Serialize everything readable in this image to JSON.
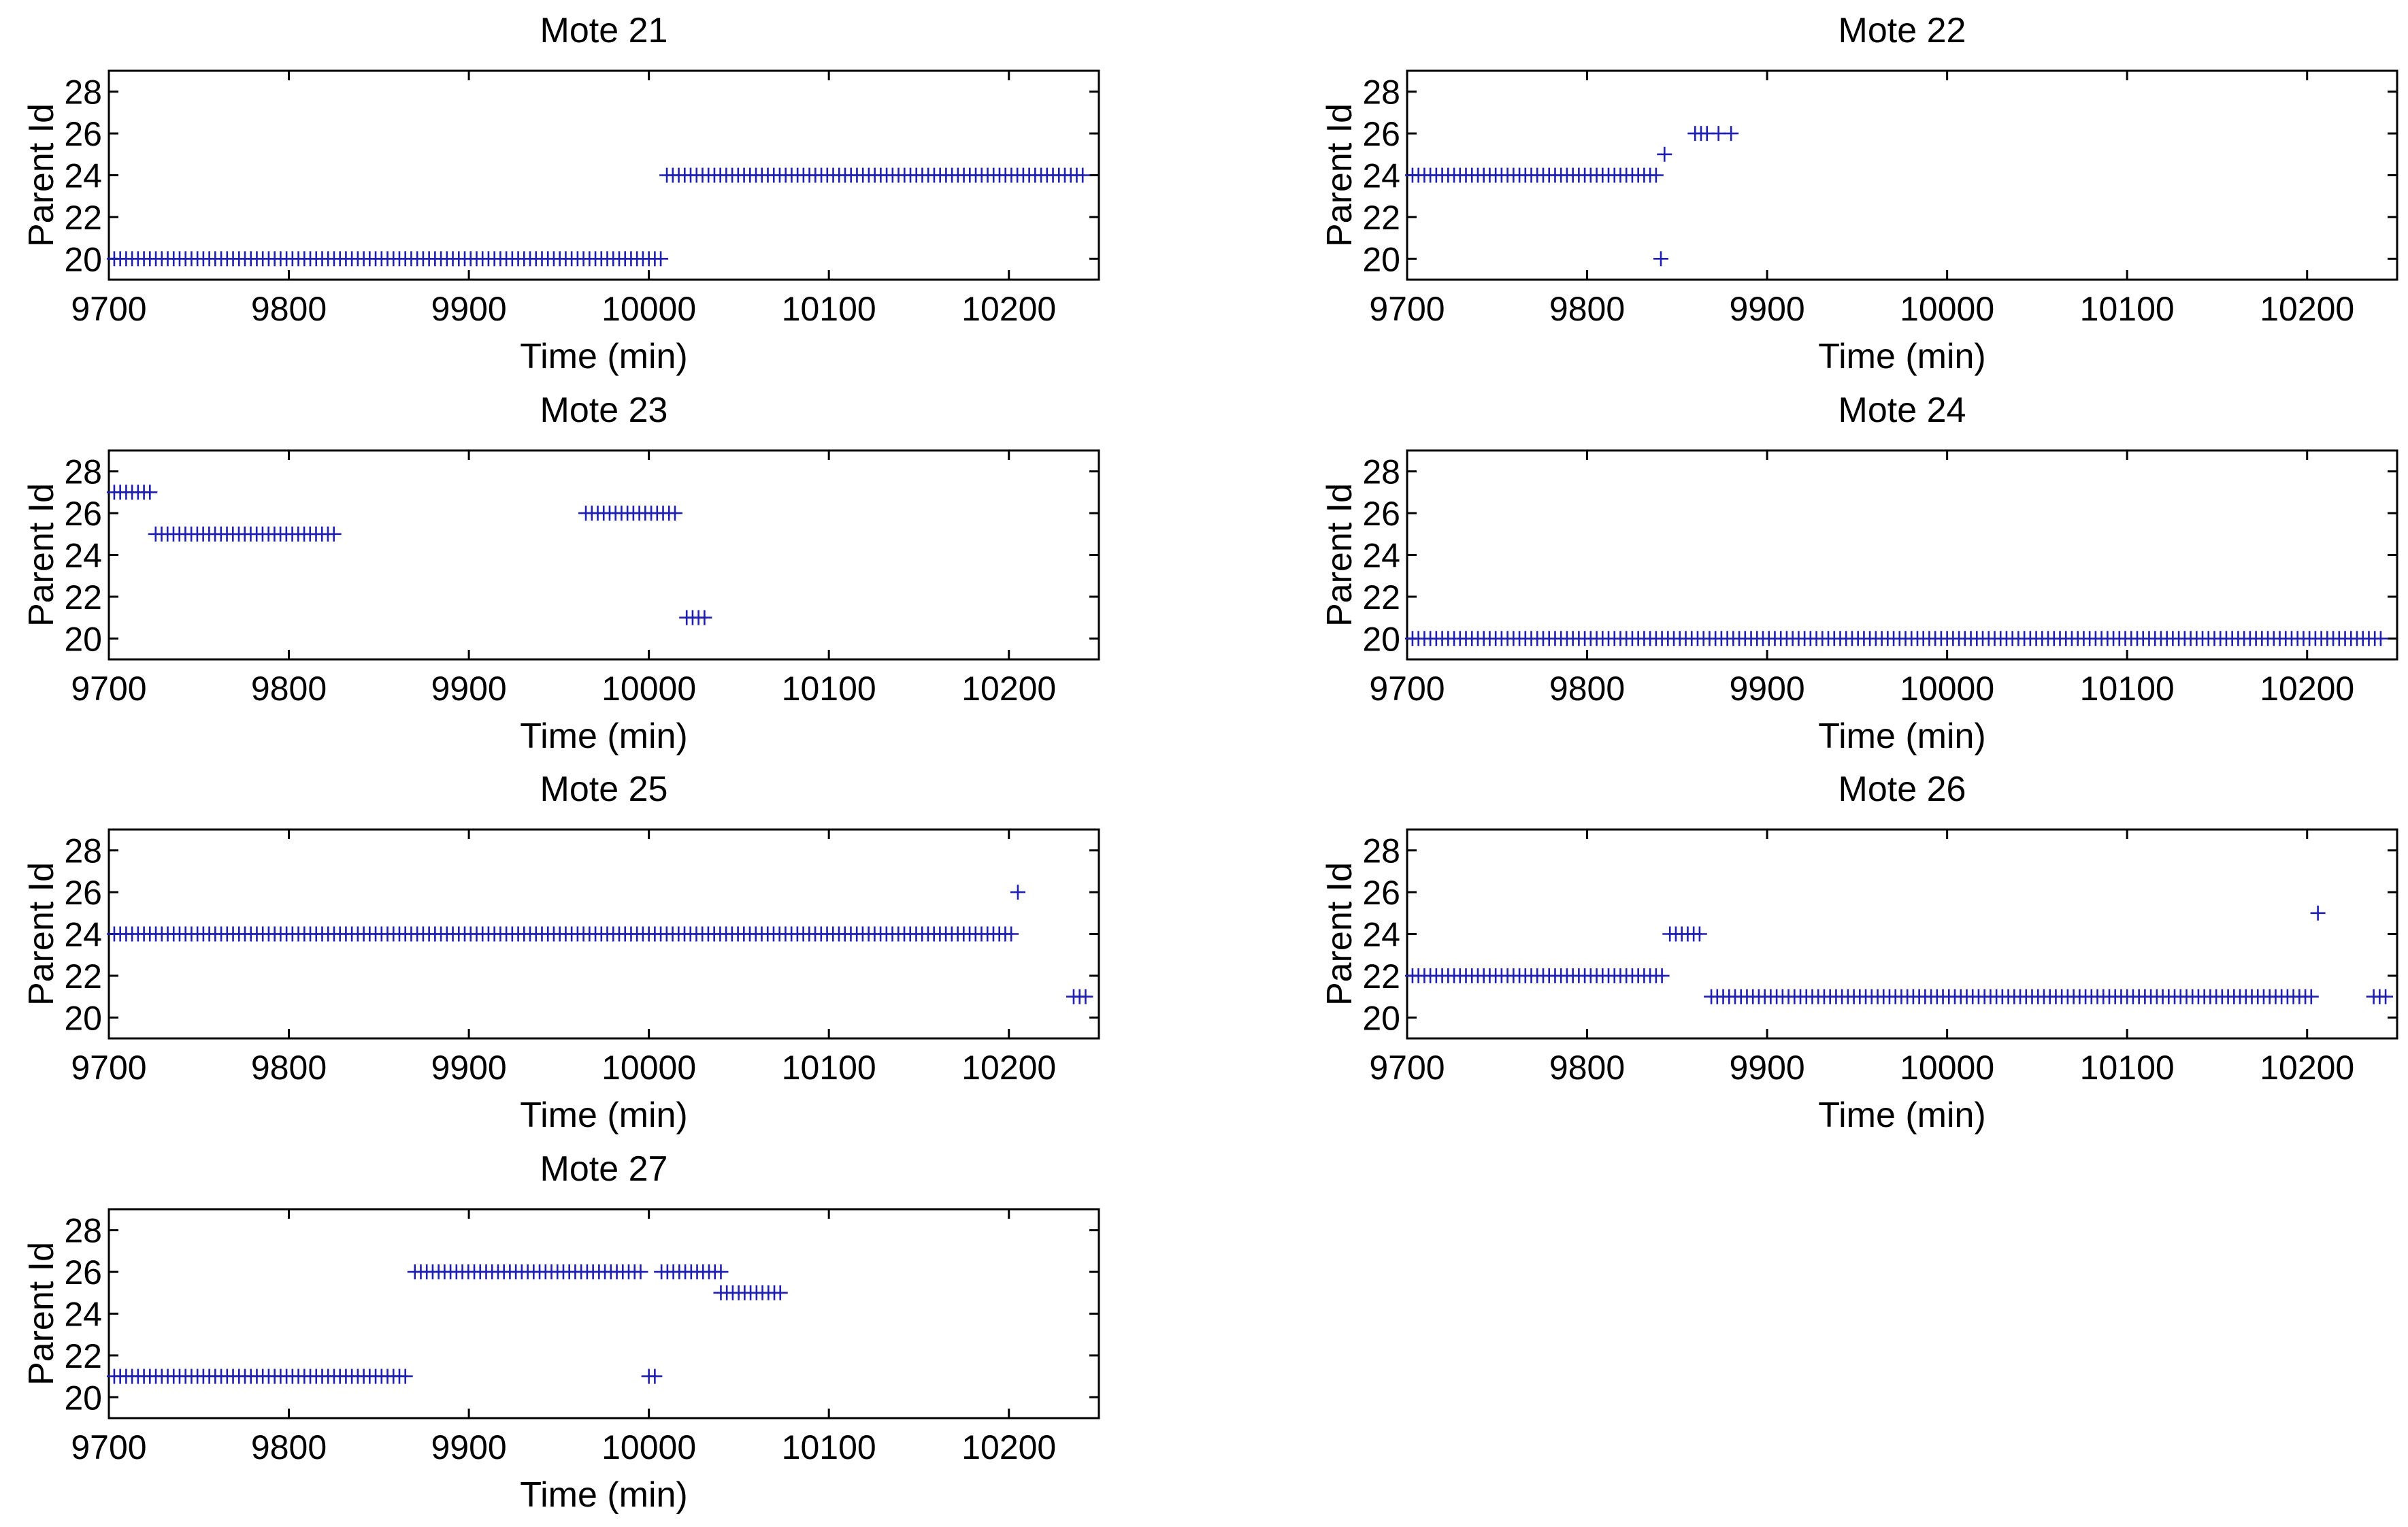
{
  "figure": {
    "background": "#ffffff",
    "marker_color": "#1f1fb4",
    "marker": "+"
  },
  "chart_data": [
    {
      "type": "scatter",
      "title": "Mote 21",
      "xlabel": "Time (min)",
      "ylabel": "Parent Id",
      "xlim": [
        9700,
        10250
      ],
      "ylim": [
        19,
        29
      ],
      "xticks": [
        9700,
        9800,
        9900,
        10000,
        10100,
        10200
      ],
      "yticks": [
        20,
        22,
        24,
        26,
        28
      ],
      "segments": [
        {
          "y": 20,
          "x_start": 9703,
          "x_end": 10007,
          "step": 3.3
        },
        {
          "y": 24,
          "x_start": 10010,
          "x_end": 10243,
          "step": 3.3
        }
      ],
      "points": []
    },
    {
      "type": "scatter",
      "title": "Mote 22",
      "xlabel": "Time (min)",
      "ylabel": "Parent Id",
      "xlim": [
        9700,
        10250
      ],
      "ylim": [
        19,
        29
      ],
      "xticks": [
        9700,
        9800,
        9900,
        10000,
        10100,
        10200
      ],
      "yticks": [
        20,
        22,
        24,
        26,
        28
      ],
      "segments": [
        {
          "y": 24,
          "x_start": 9703,
          "x_end": 9840,
          "step": 3.3
        },
        {
          "y": 26,
          "x_start": 9860,
          "x_end": 9867,
          "step": 3.3
        }
      ],
      "points": [
        {
          "x": 9843,
          "y": 25
        },
        {
          "x": 9841,
          "y": 20
        },
        {
          "x": 9873,
          "y": 26
        },
        {
          "x": 9880,
          "y": 26
        }
      ]
    },
    {
      "type": "scatter",
      "title": "Mote 23",
      "xlabel": "Time (min)",
      "ylabel": "Parent Id",
      "xlim": [
        9700,
        10250
      ],
      "ylim": [
        19,
        29
      ],
      "xticks": [
        9700,
        9800,
        9900,
        10000,
        10100,
        10200
      ],
      "yticks": [
        20,
        22,
        24,
        26,
        28
      ],
      "segments": [
        {
          "y": 27,
          "x_start": 9703,
          "x_end": 9723,
          "step": 3.3
        },
        {
          "y": 25,
          "x_start": 9726,
          "x_end": 9825,
          "step": 3.3
        },
        {
          "y": 26,
          "x_start": 9965,
          "x_end": 10017,
          "step": 3.3
        },
        {
          "y": 21,
          "x_start": 10021,
          "x_end": 10034,
          "step": 3.3
        }
      ],
      "points": []
    },
    {
      "type": "scatter",
      "title": "Mote 24",
      "xlabel": "Time (min)",
      "ylabel": "Parent Id",
      "xlim": [
        9700,
        10250
      ],
      "ylim": [
        19,
        29
      ],
      "xticks": [
        9700,
        9800,
        9900,
        10000,
        10100,
        10200
      ],
      "yticks": [
        20,
        22,
        24,
        26,
        28
      ],
      "segments": [
        {
          "y": 20,
          "x_start": 9703,
          "x_end": 10243,
          "step": 3.3
        }
      ],
      "points": []
    },
    {
      "type": "scatter",
      "title": "Mote 25",
      "xlabel": "Time (min)",
      "ylabel": "Parent Id",
      "xlim": [
        9700,
        10250
      ],
      "ylim": [
        19,
        29
      ],
      "xticks": [
        9700,
        9800,
        9900,
        10000,
        10100,
        10200
      ],
      "yticks": [
        20,
        22,
        24,
        26,
        28
      ],
      "segments": [
        {
          "y": 24,
          "x_start": 9703,
          "x_end": 10202,
          "step": 3.3
        },
        {
          "y": 21,
          "x_start": 10236,
          "x_end": 10243,
          "step": 3.3
        }
      ],
      "points": [
        {
          "x": 10205,
          "y": 26
        }
      ]
    },
    {
      "type": "scatter",
      "title": "Mote 26",
      "xlabel": "Time (min)",
      "ylabel": "Parent Id",
      "xlim": [
        9700,
        10250
      ],
      "ylim": [
        19,
        29
      ],
      "xticks": [
        9700,
        9800,
        9900,
        10000,
        10100,
        10200
      ],
      "yticks": [
        20,
        22,
        24,
        26,
        28
      ],
      "segments": [
        {
          "y": 22,
          "x_start": 9703,
          "x_end": 9843,
          "step": 3.3
        },
        {
          "y": 24,
          "x_start": 9846,
          "x_end": 9865,
          "step": 3.3
        },
        {
          "y": 21,
          "x_start": 9869,
          "x_end": 10204,
          "step": 3.3
        },
        {
          "y": 21,
          "x_start": 10237,
          "x_end": 10244,
          "step": 3.3
        }
      ],
      "points": [
        {
          "x": 10206,
          "y": 25
        }
      ]
    },
    {
      "type": "scatter",
      "title": "Mote 27",
      "xlabel": "Time (min)",
      "ylabel": "Parent Id",
      "xlim": [
        9700,
        10250
      ],
      "ylim": [
        19,
        29
      ],
      "xticks": [
        9700,
        9800,
        9900,
        10000,
        10100,
        10200
      ],
      "yticks": [
        20,
        22,
        24,
        26,
        28
      ],
      "segments": [
        {
          "y": 21,
          "x_start": 9703,
          "x_end": 9866,
          "step": 3.3
        },
        {
          "y": 26,
          "x_start": 9870,
          "x_end": 9998,
          "step": 3.3
        },
        {
          "y": 26,
          "x_start": 10007,
          "x_end": 10040,
          "step": 3.3
        },
        {
          "y": 25,
          "x_start": 10040,
          "x_end": 10075,
          "step": 3.3
        },
        {
          "y": 21,
          "x_start": 10000,
          "x_end": 10006,
          "step": 3.3
        }
      ],
      "points": []
    }
  ]
}
